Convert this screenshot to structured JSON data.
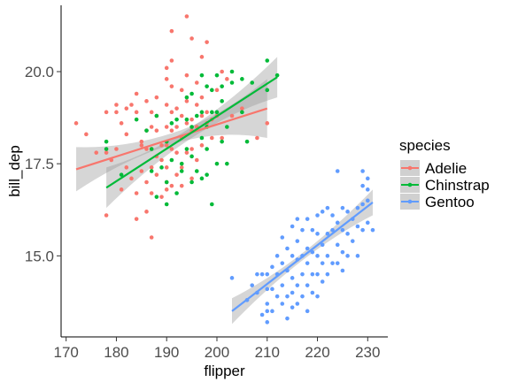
{
  "chart_data": {
    "type": "scatter",
    "title": "",
    "xlabel": "flipper",
    "ylabel": "bill_dep",
    "xlim": [
      169,
      234
    ],
    "ylim": [
      12.8,
      21.8
    ],
    "x_ticks": [
      170,
      180,
      190,
      200,
      210,
      220,
      230
    ],
    "y_ticks": [
      15.0,
      17.5,
      20.0
    ],
    "y_tick_labels": [
      "15.0",
      "17.5",
      "20.0"
    ],
    "grid": false,
    "legend": {
      "title": "species",
      "position": "right"
    },
    "series": [
      {
        "name": "Adelie",
        "color": "#F8766D",
        "points": [
          [
            172,
            18.6
          ],
          [
            174,
            18.3
          ],
          [
            176,
            17.8
          ],
          [
            178,
            17.8
          ],
          [
            178,
            18.9
          ],
          [
            178,
            16.1
          ],
          [
            179,
            17.6
          ],
          [
            180,
            19.1
          ],
          [
            180,
            18.9
          ],
          [
            180,
            17.9
          ],
          [
            181,
            18.6
          ],
          [
            181,
            16.8
          ],
          [
            182,
            19.0
          ],
          [
            182,
            18.3
          ],
          [
            182,
            17.4
          ],
          [
            183,
            19.1
          ],
          [
            183,
            17.1
          ],
          [
            184,
            18.9
          ],
          [
            184,
            19.4
          ],
          [
            184,
            16.7
          ],
          [
            184,
            16.0
          ],
          [
            185,
            18.1
          ],
          [
            185,
            18.0
          ],
          [
            185,
            17.3
          ],
          [
            186,
            19.2
          ],
          [
            186,
            18.4
          ],
          [
            186,
            17.9
          ],
          [
            186,
            17.0
          ],
          [
            186,
            16.2
          ],
          [
            187,
            18.9
          ],
          [
            187,
            18.5
          ],
          [
            187,
            17.9
          ],
          [
            187,
            17.4
          ],
          [
            187,
            16.7
          ],
          [
            187,
            15.5
          ],
          [
            188,
            19.3
          ],
          [
            188,
            18.8
          ],
          [
            188,
            18.4
          ],
          [
            188,
            17.7
          ],
          [
            188,
            17.2
          ],
          [
            189,
            18.0
          ],
          [
            189,
            17.6
          ],
          [
            189,
            16.6
          ],
          [
            190,
            20.1
          ],
          [
            190,
            19.8
          ],
          [
            190,
            19.1
          ],
          [
            190,
            18.5
          ],
          [
            190,
            18.0
          ],
          [
            190,
            17.4
          ],
          [
            190,
            17.0
          ],
          [
            190,
            16.8
          ],
          [
            191,
            21.1
          ],
          [
            191,
            20.3
          ],
          [
            191,
            19.6
          ],
          [
            191,
            18.9
          ],
          [
            191,
            18.4
          ],
          [
            191,
            17.9
          ],
          [
            191,
            16.9
          ],
          [
            192,
            19.0
          ],
          [
            192,
            18.5
          ],
          [
            192,
            17.8
          ],
          [
            192,
            17.2
          ],
          [
            193,
            19.5
          ],
          [
            193,
            18.8
          ],
          [
            193,
            18.2
          ],
          [
            193,
            17.4
          ],
          [
            193,
            16.9
          ],
          [
            194,
            21.5
          ],
          [
            194,
            19.9
          ],
          [
            194,
            19.2
          ],
          [
            194,
            18.6
          ],
          [
            194,
            17.8
          ],
          [
            195,
            20.9
          ],
          [
            195,
            18.7
          ],
          [
            195,
            18.4
          ],
          [
            195,
            17.9
          ],
          [
            195,
            17.1
          ],
          [
            196,
            19.7
          ],
          [
            196,
            19.1
          ],
          [
            196,
            18.5
          ],
          [
            196,
            17.6
          ],
          [
            197,
            20.4
          ],
          [
            197,
            19.3
          ],
          [
            197,
            18.8
          ],
          [
            197,
            18.0
          ],
          [
            198,
            20.8
          ],
          [
            198,
            18.9
          ],
          [
            198,
            18.6
          ],
          [
            199,
            18.7
          ],
          [
            199,
            18.2
          ],
          [
            200,
            19.5
          ],
          [
            200,
            18.8
          ],
          [
            201,
            20.0
          ],
          [
            201,
            18.2
          ],
          [
            202,
            19.8
          ],
          [
            203,
            18.8
          ],
          [
            205,
            19.0
          ],
          [
            208,
            18.2
          ],
          [
            210,
            18.6
          ]
        ]
      },
      {
        "name": "Chinstrap",
        "color": "#00BA38",
        "points": [
          [
            178,
            18.1
          ],
          [
            178,
            17.9
          ],
          [
            181,
            17.2
          ],
          [
            184,
            18.7
          ],
          [
            186,
            18.4
          ],
          [
            187,
            17.9
          ],
          [
            187,
            17.3
          ],
          [
            188,
            18.8
          ],
          [
            188,
            16.6
          ],
          [
            189,
            17.4
          ],
          [
            190,
            18.1
          ],
          [
            190,
            17.0
          ],
          [
            190,
            16.4
          ],
          [
            191,
            18.6
          ],
          [
            191,
            17.6
          ],
          [
            192,
            18.7
          ],
          [
            192,
            16.7
          ],
          [
            193,
            17.5
          ],
          [
            193,
            17.3
          ],
          [
            194,
            19.3
          ],
          [
            194,
            18.7
          ],
          [
            194,
            17.9
          ],
          [
            195,
            19.4
          ],
          [
            195,
            18.5
          ],
          [
            195,
            17.7
          ],
          [
            195,
            17.0
          ],
          [
            196,
            18.8
          ],
          [
            196,
            17.3
          ],
          [
            197,
            19.9
          ],
          [
            197,
            18.9
          ],
          [
            197,
            18.2
          ],
          [
            197,
            17.1
          ],
          [
            198,
            19.6
          ],
          [
            198,
            18.5
          ],
          [
            198,
            17.9
          ],
          [
            198,
            17.2
          ],
          [
            199,
            19.5
          ],
          [
            199,
            18.9
          ],
          [
            199,
            16.4
          ],
          [
            200,
            19.9
          ],
          [
            200,
            18.9
          ],
          [
            200,
            17.5
          ],
          [
            201,
            19.2
          ],
          [
            201,
            18.1
          ],
          [
            201,
            19.6
          ],
          [
            202,
            18.5
          ],
          [
            202,
            17.5
          ],
          [
            203,
            19.7
          ],
          [
            203,
            20.0
          ],
          [
            205,
            19.8
          ],
          [
            205,
            18.9
          ],
          [
            206,
            18.1
          ],
          [
            207,
            19.7
          ],
          [
            210,
            20.3
          ],
          [
            212,
            19.9
          ],
          [
            210,
            19.5
          ]
        ]
      },
      {
        "name": "Gentoo",
        "color": "#619CFF",
        "points": [
          [
            203,
            14.4
          ],
          [
            206,
            13.8
          ],
          [
            207,
            14.2
          ],
          [
            208,
            14.5
          ],
          [
            208,
            14.0
          ],
          [
            209,
            14.5
          ],
          [
            209,
            13.4
          ],
          [
            210,
            14.5
          ],
          [
            210,
            13.7
          ],
          [
            210,
            13.5
          ],
          [
            210,
            13.2
          ],
          [
            210,
            14.1
          ],
          [
            211,
            14.7
          ],
          [
            211,
            14.1
          ],
          [
            211,
            13.5
          ],
          [
            212,
            15.0
          ],
          [
            212,
            14.5
          ],
          [
            212,
            13.9
          ],
          [
            213,
            15.5
          ],
          [
            213,
            14.8
          ],
          [
            213,
            14.2
          ],
          [
            213,
            13.7
          ],
          [
            214,
            15.2
          ],
          [
            214,
            14.6
          ],
          [
            214,
            13.9
          ],
          [
            214,
            13.3
          ],
          [
            215,
            15.8
          ],
          [
            215,
            15.0
          ],
          [
            215,
            14.4
          ],
          [
            215,
            14.0
          ],
          [
            215,
            13.6
          ],
          [
            216,
            16.0
          ],
          [
            216,
            15.4
          ],
          [
            216,
            14.9
          ],
          [
            216,
            14.2
          ],
          [
            216,
            13.7
          ],
          [
            217,
            15.7
          ],
          [
            217,
            15.0
          ],
          [
            217,
            14.5
          ],
          [
            217,
            13.9
          ],
          [
            218,
            16.0
          ],
          [
            218,
            15.2
          ],
          [
            218,
            14.8
          ],
          [
            218,
            14.2
          ],
          [
            218,
            13.5
          ],
          [
            219,
            15.7
          ],
          [
            219,
            15.1
          ],
          [
            219,
            14.5
          ],
          [
            219,
            14.0
          ],
          [
            220,
            16.1
          ],
          [
            220,
            15.6
          ],
          [
            220,
            15.0
          ],
          [
            220,
            14.5
          ],
          [
            220,
            13.9
          ],
          [
            221,
            16.2
          ],
          [
            221,
            15.3
          ],
          [
            221,
            14.8
          ],
          [
            221,
            14.3
          ],
          [
            222,
            16.3
          ],
          [
            222,
            15.6
          ],
          [
            222,
            15.0
          ],
          [
            222,
            14.5
          ],
          [
            223,
            16.1
          ],
          [
            223,
            15.7
          ],
          [
            223,
            14.8
          ],
          [
            224,
            17.3
          ],
          [
            224,
            15.9
          ],
          [
            224,
            15.3
          ],
          [
            224,
            14.8
          ],
          [
            225,
            16.3
          ],
          [
            225,
            15.7
          ],
          [
            225,
            15.1
          ],
          [
            225,
            14.6
          ],
          [
            226,
            16.2
          ],
          [
            226,
            15.6
          ],
          [
            226,
            15.0
          ],
          [
            227,
            16.0
          ],
          [
            227,
            15.4
          ],
          [
            228,
            16.3
          ],
          [
            228,
            15.8
          ],
          [
            228,
            15.0
          ],
          [
            229,
            17.3
          ],
          [
            229,
            16.9
          ],
          [
            229,
            16.4
          ],
          [
            229,
            15.7
          ],
          [
            230,
            17.1
          ],
          [
            230,
            16.5
          ],
          [
            230,
            15.9
          ],
          [
            230,
            16.8
          ],
          [
            231,
            15.7
          ]
        ]
      }
    ],
    "regression": [
      {
        "series": "Adelie",
        "x": [
          172,
          210
        ],
        "y": [
          17.35,
          19.0
        ],
        "ci_half": [
          0.6,
          0.15,
          0.8
        ]
      },
      {
        "series": "Chinstrap",
        "x": [
          178,
          212
        ],
        "y": [
          16.85,
          19.85
        ],
        "ci_half": [
          0.55,
          0.15,
          0.55
        ]
      },
      {
        "series": "Gentoo",
        "x": [
          203,
          231
        ],
        "y": [
          13.5,
          16.45
        ],
        "ci_half": [
          0.35,
          0.1,
          0.35
        ]
      }
    ]
  }
}
